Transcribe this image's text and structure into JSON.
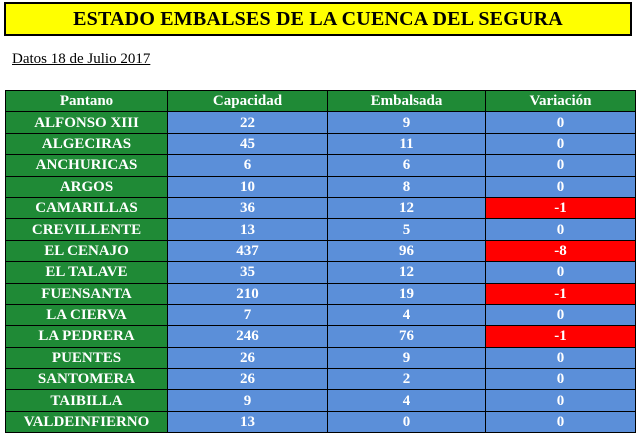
{
  "title": "ESTADO EMBALSES DE LA CUENCA DEL SEGURA",
  "date_line": "Datos 18 de Julio 2017",
  "colors": {
    "title_background": "#ffff00",
    "header_background": "#1f8a36",
    "name_background": "#1f8a36",
    "value_background": "#5b8fd9",
    "negative_background": "#ff0000",
    "text": "#ffffff"
  },
  "table": {
    "headers": [
      "Pantano",
      "Capacidad",
      "Embalsada",
      "Variación"
    ],
    "rows": [
      {
        "name": "ALFONSO XIII",
        "capacidad": "22",
        "embalsada": "9",
        "variacion": "0",
        "negative": false
      },
      {
        "name": "ALGECIRAS",
        "capacidad": "45",
        "embalsada": "11",
        "variacion": "0",
        "negative": false
      },
      {
        "name": "ANCHURICAS",
        "capacidad": "6",
        "embalsada": "6",
        "variacion": "0",
        "negative": false
      },
      {
        "name": "ARGOS",
        "capacidad": "10",
        "embalsada": "8",
        "variacion": "0",
        "negative": false
      },
      {
        "name": "CAMARILLAS",
        "capacidad": "36",
        "embalsada": "12",
        "variacion": "-1",
        "negative": true
      },
      {
        "name": "CREVILLENTE",
        "capacidad": "13",
        "embalsada": "5",
        "variacion": "0",
        "negative": false
      },
      {
        "name": "EL CENAJO",
        "capacidad": "437",
        "embalsada": "96",
        "variacion": "-8",
        "negative": true
      },
      {
        "name": "EL TALAVE",
        "capacidad": "35",
        "embalsada": "12",
        "variacion": "0",
        "negative": false
      },
      {
        "name": "FUENSANTA",
        "capacidad": "210",
        "embalsada": "19",
        "variacion": "-1",
        "negative": true
      },
      {
        "name": "LA CIERVA",
        "capacidad": "7",
        "embalsada": "4",
        "variacion": "0",
        "negative": false
      },
      {
        "name": "LA PEDRERA",
        "capacidad": "246",
        "embalsada": "76",
        "variacion": "-1",
        "negative": true
      },
      {
        "name": "PUENTES",
        "capacidad": "26",
        "embalsada": "9",
        "variacion": "0",
        "negative": false
      },
      {
        "name": "SANTOMERA",
        "capacidad": "26",
        "embalsada": "2",
        "variacion": "0",
        "negative": false
      },
      {
        "name": "TAIBILLA",
        "capacidad": "9",
        "embalsada": "4",
        "variacion": "0",
        "negative": false
      },
      {
        "name": "VALDEINFIERNO",
        "capacidad": "13",
        "embalsada": "0",
        "variacion": "0",
        "negative": false
      }
    ]
  }
}
